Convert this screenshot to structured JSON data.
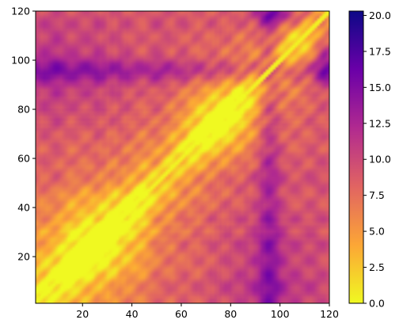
{
  "chart_data": {
    "type": "heatmap",
    "title": "",
    "xlabel": "",
    "ylabel": "",
    "xlim": [
      1,
      120
    ],
    "ylim": [
      1,
      120
    ],
    "x_ticks": [
      20,
      40,
      60,
      80,
      100,
      120
    ],
    "y_ticks": [
      20,
      40,
      60,
      80,
      100,
      120
    ],
    "x_tick_labels": [
      "20",
      "40",
      "60",
      "80",
      "100",
      "120"
    ],
    "y_tick_labels": [
      "20",
      "40",
      "60",
      "80",
      "100",
      "120"
    ],
    "matrix_size": 120,
    "symmetric": true,
    "diagonal_value": 0,
    "colormap": "plasma_r",
    "grid": false,
    "colorbar": {
      "placement": "right",
      "min": 0.0,
      "max": 20.3,
      "ticks": [
        0.0,
        2.5,
        5.0,
        7.5,
        10.0,
        12.5,
        15.0,
        17.5,
        20.0
      ],
      "tick_labels": [
        "0.0",
        "2.5",
        "5.0",
        "7.5",
        "10.0",
        "12.5",
        "15.0",
        "17.5",
        "20.0"
      ]
    },
    "colormap_stops": [
      "#f0f921",
      "#fca636",
      "#e16462",
      "#b12a90",
      "#6a00a8",
      "#0d0887"
    ],
    "regions": [
      {
        "x_range": [
          1,
          120
        ],
        "y_range": [
          92,
          100
        ],
        "level": 14.5,
        "note": "dark horizontal band near y 95"
      },
      {
        "x_range": [
          92,
          100
        ],
        "y_range": [
          1,
          120
        ],
        "level": 14.5,
        "note": "dark vertical band near x 95"
      },
      {
        "x_range": [
          112,
          120
        ],
        "y_range": [
          88,
          105
        ],
        "level": 19.0,
        "note": "darkest spot at right edge"
      },
      {
        "x_range": [
          88,
          105
        ],
        "y_range": [
          112,
          120
        ],
        "level": 18.5,
        "note": "dark spot at top edge"
      },
      {
        "x_range": [
          1,
          45
        ],
        "y_range": [
          1,
          45
        ],
        "level": 4.0,
        "note": "low-distance block bottom-left"
      },
      {
        "x_range": [
          60,
          90
        ],
        "y_range": [
          60,
          90
        ],
        "level": 5.5,
        "note": "low-distance block center"
      }
    ]
  }
}
